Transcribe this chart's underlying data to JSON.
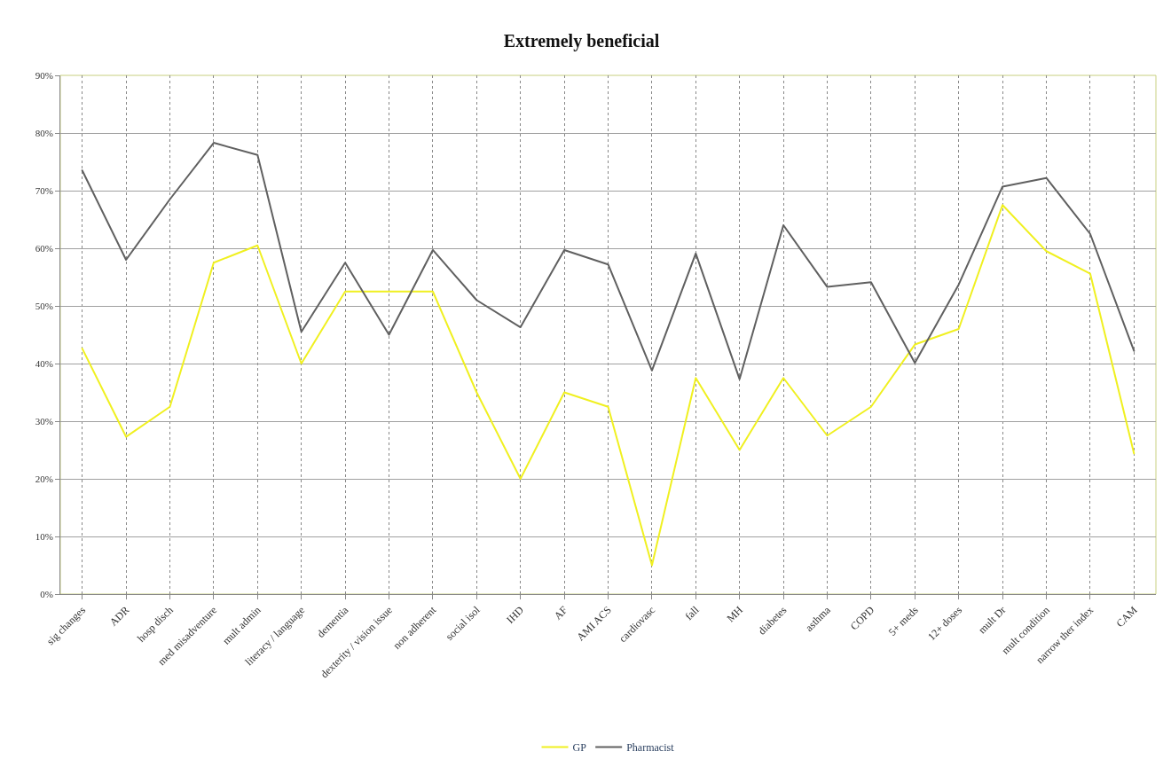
{
  "chart_data": {
    "type": "line",
    "title": "Extremely beneficial",
    "categories": [
      "sig changes",
      "ADR",
      "hosp disch",
      "med misadventure",
      "mult admin",
      "literacy / language",
      "dementia",
      "dexterity / vision issue",
      "non adherent",
      "social isol",
      "IHD",
      "AF",
      "AMI ACS",
      "cardiovasc",
      "fall",
      "MH",
      "diabetes",
      "asthma",
      "COPD",
      "5+ meds",
      "12+ doses",
      "mult Dr",
      "mult condition",
      "narrow ther index",
      "CAM"
    ],
    "series": [
      {
        "name": "GP",
        "color": "#f0f020",
        "values": [
          42.6,
          27.3,
          32.5,
          57.5,
          60.5,
          40,
          52.5,
          52.5,
          52.5,
          35,
          20,
          35,
          32.5,
          5,
          37.5,
          25,
          37.5,
          27.5,
          32.5,
          43.3,
          46,
          67.5,
          59.5,
          55.6,
          24.4
        ]
      },
      {
        "name": "Pharmacist",
        "color": "#606060",
        "values": [
          73.5,
          58,
          68.5,
          78.3,
          76.2,
          45.5,
          57.5,
          45,
          59.7,
          51,
          46.3,
          59.7,
          57.2,
          38.8,
          59.1,
          37.3,
          64,
          53.3,
          54.1,
          40.1,
          53.7,
          70.7,
          72.2,
          62.5,
          42.2
        ]
      }
    ],
    "ylim": [
      0,
      90
    ],
    "yticks": [
      {
        "value": 0,
        "label": "0%"
      },
      {
        "value": 10,
        "label": "10%"
      },
      {
        "value": 20,
        "label": "20%"
      },
      {
        "value": 30,
        "label": "30%"
      },
      {
        "value": 40,
        "label": "40%"
      },
      {
        "value": 50,
        "label": "50%"
      },
      {
        "value": 60,
        "label": "60%"
      },
      {
        "value": 70,
        "label": "70%"
      },
      {
        "value": 80,
        "label": "80%"
      },
      {
        "value": 90,
        "label": "90%"
      }
    ],
    "grid": true,
    "legend": "bottom",
    "marker": "none",
    "line_style": "solid"
  }
}
